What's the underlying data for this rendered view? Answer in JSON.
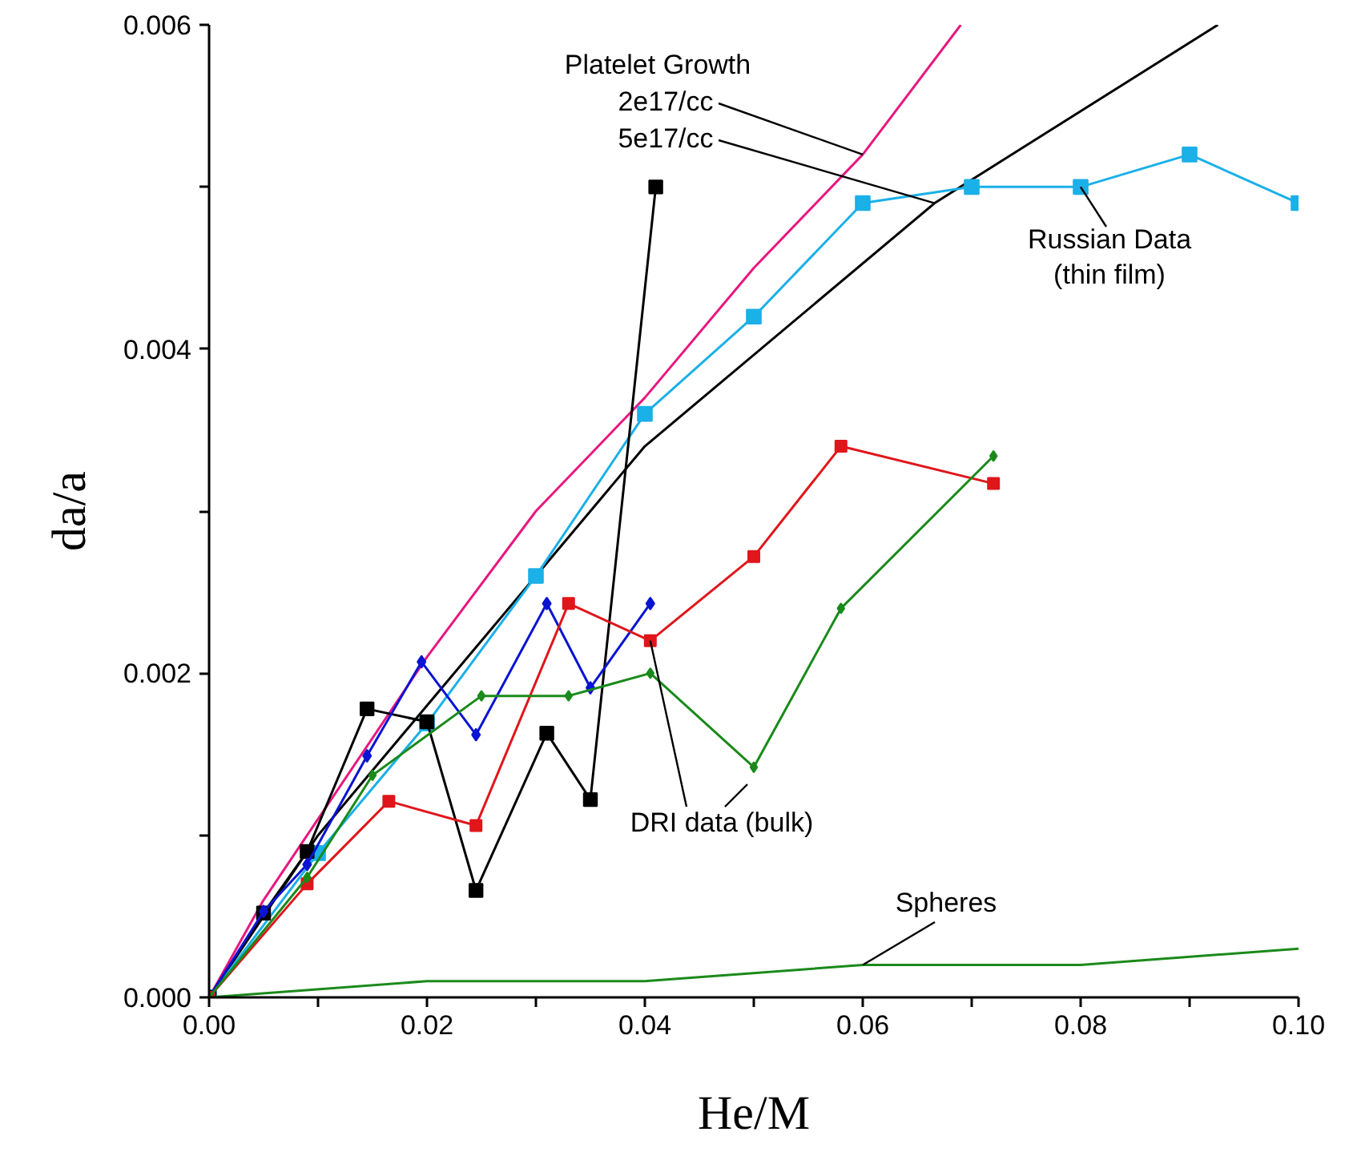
{
  "chart_data": {
    "type": "line",
    "xlabel": "He/M",
    "ylabel": "da/a",
    "xlim": [
      0,
      0.1
    ],
    "ylim": [
      0,
      0.006
    ],
    "xticks": [
      {
        "value": 0,
        "label": "0.00"
      },
      {
        "value": 0.01,
        "label": null
      },
      {
        "value": 0.02,
        "label": "0.02"
      },
      {
        "value": 0.03,
        "label": null
      },
      {
        "value": 0.04,
        "label": "0.04"
      },
      {
        "value": 0.05,
        "label": null
      },
      {
        "value": 0.06,
        "label": "0.06"
      },
      {
        "value": 0.07,
        "label": null
      },
      {
        "value": 0.08,
        "label": "0.08"
      },
      {
        "value": 0.09,
        "label": null
      },
      {
        "value": 0.1,
        "label": "0.10"
      }
    ],
    "yticks": [
      {
        "value": 0,
        "label": "0.000"
      },
      {
        "value": 0.001,
        "label": null
      },
      {
        "value": 0.002,
        "label": "0.002"
      },
      {
        "value": 0.003,
        "label": null
      },
      {
        "value": 0.004,
        "label": "0.004"
      },
      {
        "value": 0.005,
        "label": null
      },
      {
        "value": 0.006,
        "label": "0.006"
      }
    ],
    "grid": false,
    "line_style": "solid",
    "annotations": [
      "Platelet Growth",
      {
        "text": "2e17/cc",
        "x": 0.06,
        "y": 0.0052
      },
      {
        "text": "5e17/cc",
        "x": 0.0666,
        "y": 0.0049
      },
      {
        "text": "Russian Data (thin film)",
        "x": 0.08,
        "y": 0.005
      },
      {
        "text": "DRI data (bulk)",
        "x": 0.0405,
        "y": 0.0022
      },
      {
        "text": "Spheres",
        "x": 0.06,
        "y": 0.0002
      }
    ],
    "series": [
      {
        "color": "#e8177f",
        "marker": "none",
        "x": [
          0,
          0.005,
          0.01,
          0.02,
          0.03,
          0.04,
          0.05,
          0.06,
          0.069
        ],
        "values": [
          0,
          0.0006,
          0.0011,
          0.0021,
          0.003,
          0.0037,
          0.0045,
          0.0052,
          0.006
        ]
      },
      {
        "color": "#000000",
        "marker": "none",
        "x": [
          0,
          0.01,
          0.02,
          0.03,
          0.04,
          0.0666,
          0.0926
        ],
        "values": [
          0,
          0.001,
          0.0018,
          0.0026,
          0.0034,
          0.0049,
          0.006
        ]
      },
      {
        "color": "#1ab0e8",
        "marker": "square",
        "x": [
          0,
          0.01,
          0.02,
          0.03,
          0.04,
          0.05,
          0.06,
          0.07,
          0.08,
          0.09,
          0.1
        ],
        "values": [
          0,
          0.00089,
          0.00169,
          0.0026,
          0.0036,
          0.0042,
          0.0049,
          0.005,
          0.005,
          0.0052,
          0.0049
        ]
      },
      {
        "color": "#000000",
        "marker": "square",
        "x": [
          0,
          0.005,
          0.009,
          0.0145,
          0.02,
          0.0245,
          0.031,
          0.035,
          0.041
        ],
        "values": [
          0,
          0.00052,
          0.0009,
          0.00178,
          0.0017,
          0.00066,
          0.00163,
          0.00122,
          0.005
        ]
      },
      {
        "color": "#0a14d2",
        "marker": "diamond",
        "x": [
          0,
          0.005,
          0.009,
          0.0145,
          0.0195,
          0.0245,
          0.031,
          0.035,
          0.0405
        ],
        "values": [
          0,
          0.00053,
          0.00082,
          0.00149,
          0.00207,
          0.00162,
          0.00243,
          0.00191,
          0.00243
        ]
      },
      {
        "color": "#e0161b",
        "marker": "square",
        "x": [
          0,
          0.009,
          0.0165,
          0.0245,
          0.033,
          0.0405,
          0.05,
          0.058,
          0.072
        ],
        "values": [
          0,
          0.0007,
          0.00121,
          0.00106,
          0.00243,
          0.0022,
          0.00272,
          0.0034,
          0.00317
        ]
      },
      {
        "color": "#1a8a1a",
        "marker": "diamond",
        "x": [
          0,
          0.009,
          0.015,
          0.025,
          0.033,
          0.0405,
          0.05,
          0.058,
          0.072
        ],
        "values": [
          0,
          0.00074,
          0.00137,
          0.00186,
          0.00186,
          0.002,
          0.00142,
          0.0024,
          0.00334
        ]
      },
      {
        "color": "#1a8a1a",
        "marker": "none",
        "x": [
          0,
          0.02,
          0.04,
          0.06,
          0.08,
          0.1
        ],
        "values": [
          0,
          0.0001,
          0.0001,
          0.0002,
          0.0002,
          0.0003
        ]
      }
    ]
  }
}
